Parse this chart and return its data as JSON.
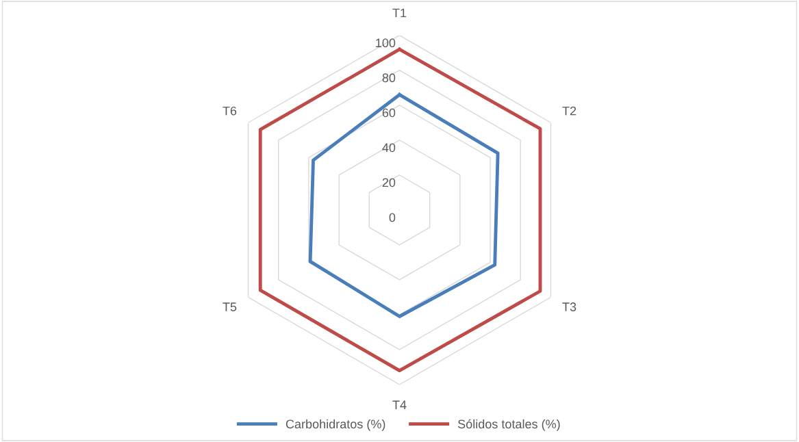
{
  "chart_data": {
    "type": "radar",
    "categories": [
      "T1",
      "T2",
      "T3",
      "T4",
      "T5",
      "T6"
    ],
    "series": [
      {
        "name": "Carbohidratos (%)",
        "color": "#4a7ebb",
        "values": [
          66,
          65,
          63,
          61,
          59,
          57
        ]
      },
      {
        "name": "Sólidos totales (%)",
        "color": "#be4b48",
        "values": [
          92,
          93,
          93,
          92,
          92,
          92
        ]
      }
    ],
    "ylim": [
      0,
      100
    ],
    "yticks": [
      0,
      20,
      40,
      60,
      80,
      100
    ],
    "grid": true,
    "legend": "bottom",
    "marker": "none",
    "line_style": "solid"
  }
}
